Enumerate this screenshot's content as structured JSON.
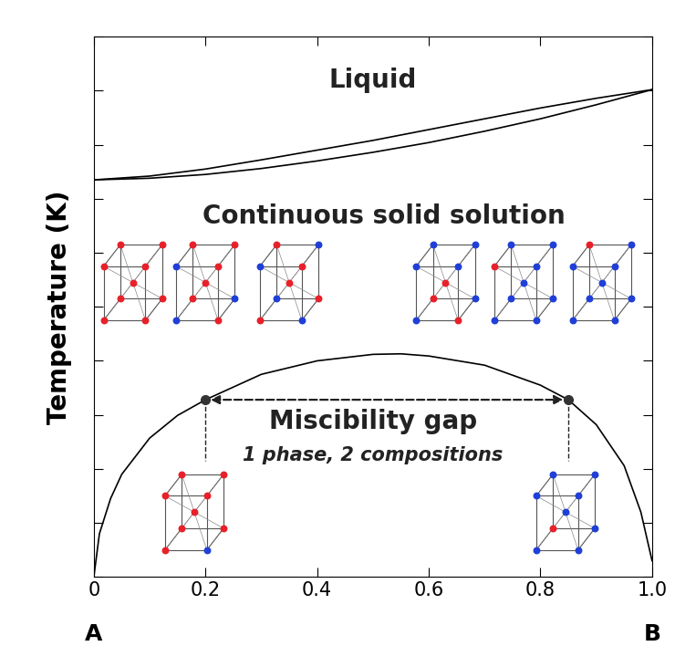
{
  "chart_data": {
    "type": "phase_diagram",
    "y_label": "Temperature (K)",
    "components": [
      "A",
      "B"
    ],
    "xlim": [
      0,
      1.0
    ],
    "xticks": [
      0,
      0.2,
      0.4,
      0.6,
      {
        "value": 1.0,
        "label": "1.0"
      },
      0.8
    ],
    "ylim": [
      0,
      10
    ],
    "yticks": [
      0,
      1,
      2,
      3,
      4,
      5,
      6,
      7,
      8,
      9,
      10
    ],
    "tick_labels": "x",
    "liquidus": {
      "x": [
        0,
        0.1,
        0.2,
        0.3,
        0.4,
        0.5,
        0.6,
        0.7,
        0.8,
        0.9,
        1.0
      ],
      "values": [
        7.35,
        7.42,
        7.55,
        7.72,
        7.9,
        8.08,
        8.28,
        8.48,
        8.68,
        8.86,
        9.02
      ]
    },
    "solidus": {
      "x": [
        0,
        0.1,
        0.2,
        0.3,
        0.4,
        0.5,
        0.6,
        0.7,
        0.8,
        0.9,
        1.0
      ],
      "values": [
        7.35,
        7.38,
        7.45,
        7.56,
        7.7,
        7.86,
        8.04,
        8.25,
        8.48,
        8.74,
        9.02
      ]
    },
    "miscibility_gap": {
      "x": [
        0,
        0.01,
        0.03,
        0.05,
        0.1,
        0.15,
        0.2,
        0.3,
        0.4,
        0.5,
        0.55,
        0.6,
        0.7,
        0.8,
        0.85,
        0.9,
        0.95,
        0.98,
        1.0
      ],
      "values": [
        0,
        0.8,
        1.45,
        1.9,
        2.57,
        2.99,
        3.28,
        3.75,
        4.0,
        4.12,
        4.13,
        4.09,
        3.92,
        3.55,
        3.28,
        2.82,
        2.06,
        1.2,
        0.3
      ]
    },
    "tie_line": {
      "x": [
        0.2,
        0.85
      ],
      "value": 3.28
    },
    "region_labels": {
      "liquid": "Liquid",
      "solid_solution": "Continuous solid solution",
      "miscibility_gap": "Miscibility gap",
      "miscibility_note": "1 phase, 2 compositions"
    }
  }
}
